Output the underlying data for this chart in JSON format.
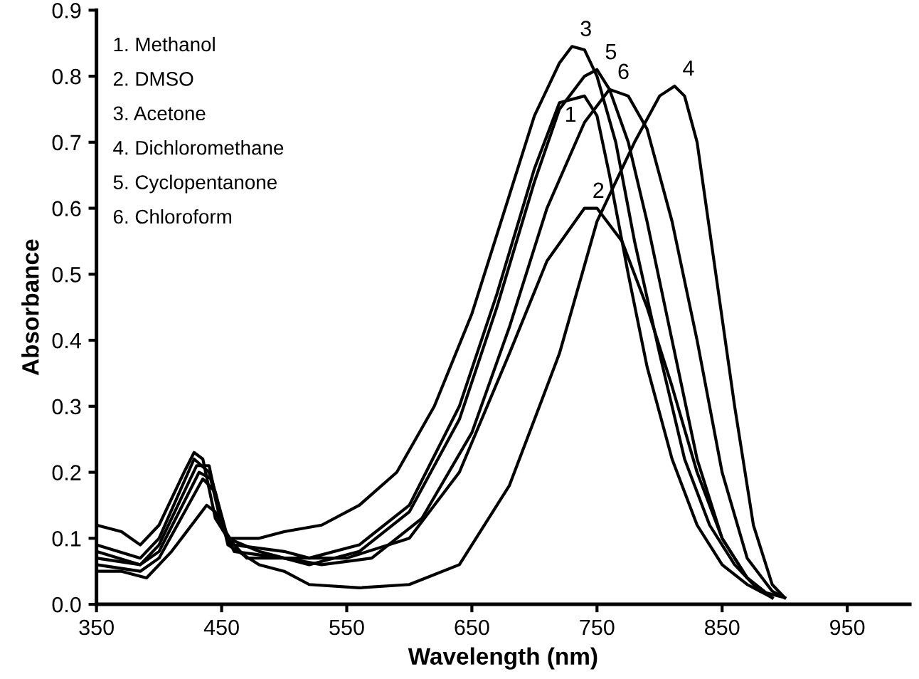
{
  "chart_data": {
    "type": "line",
    "xlabel": "Wavelength (nm)",
    "ylabel": "Absorbance",
    "xlim": [
      350,
      1000
    ],
    "ylim": [
      0,
      0.9
    ],
    "xticks": [
      350,
      450,
      550,
      650,
      750,
      850,
      950
    ],
    "yticks": [
      {
        "value": 0,
        "label": "0.0"
      },
      {
        "value": 0.1,
        "label": "0.1"
      },
      {
        "value": 0.2,
        "label": "0.2"
      },
      {
        "value": 0.3,
        "label": "0.3"
      },
      {
        "value": 0.4,
        "label": "0.4"
      },
      {
        "value": 0.5,
        "label": "0.5"
      },
      {
        "value": 0.6,
        "label": "0.6"
      },
      {
        "value": 0.7,
        "label": "0.7"
      },
      {
        "value": 0.8,
        "label": "0.8"
      },
      {
        "value": 0.9,
        "label": "0.9"
      }
    ],
    "grid": false,
    "legend": false,
    "marker": "none",
    "line_style": "solid",
    "series": [
      {
        "name": "1",
        "color": "#000000",
        "x": [
          350,
          385,
          400,
          428,
          440,
          450,
          460,
          500,
          520,
          560,
          600,
          640,
          670,
          700,
          720,
          740,
          750,
          760,
          775,
          790,
          810,
          830,
          850,
          870,
          890
        ],
        "values": [
          0.09,
          0.07,
          0.1,
          0.22,
          0.2,
          0.12,
          0.09,
          0.08,
          0.07,
          0.09,
          0.15,
          0.3,
          0.47,
          0.66,
          0.76,
          0.77,
          0.74,
          0.65,
          0.5,
          0.36,
          0.22,
          0.12,
          0.06,
          0.03,
          0.01
        ]
      },
      {
        "name": "2",
        "color": "#000000",
        "x": [
          350,
          370,
          390,
          410,
          438,
          445,
          455,
          480,
          500,
          550,
          600,
          640,
          680,
          710,
          740,
          750,
          770,
          790,
          810,
          830,
          850,
          870,
          890
        ],
        "values": [
          0.05,
          0.05,
          0.04,
          0.08,
          0.15,
          0.14,
          0.1,
          0.08,
          0.07,
          0.07,
          0.1,
          0.2,
          0.38,
          0.52,
          0.6,
          0.6,
          0.55,
          0.45,
          0.33,
          0.2,
          0.1,
          0.04,
          0.01
        ]
      },
      {
        "name": "3",
        "color": "#000000",
        "x": [
          350,
          370,
          385,
          400,
          420,
          428,
          435,
          445,
          455,
          480,
          500,
          530,
          560,
          590,
          620,
          650,
          680,
          700,
          720,
          730,
          740,
          750,
          765,
          780,
          800,
          820,
          840,
          860,
          880,
          900
        ],
        "values": [
          0.12,
          0.11,
          0.09,
          0.12,
          0.2,
          0.23,
          0.22,
          0.13,
          0.1,
          0.1,
          0.11,
          0.12,
          0.15,
          0.2,
          0.3,
          0.44,
          0.62,
          0.74,
          0.82,
          0.845,
          0.84,
          0.8,
          0.7,
          0.55,
          0.38,
          0.22,
          0.12,
          0.06,
          0.02,
          0.01
        ]
      },
      {
        "name": "4",
        "color": "#000000",
        "x": [
          350,
          385,
          400,
          435,
          445,
          455,
          480,
          500,
          520,
          560,
          600,
          640,
          680,
          720,
          750,
          780,
          800,
          812,
          820,
          830,
          845,
          860,
          875,
          890,
          900
        ],
        "values": [
          0.06,
          0.05,
          0.07,
          0.19,
          0.17,
          0.09,
          0.06,
          0.05,
          0.03,
          0.025,
          0.03,
          0.06,
          0.18,
          0.38,
          0.58,
          0.7,
          0.77,
          0.785,
          0.77,
          0.7,
          0.5,
          0.3,
          0.12,
          0.03,
          0.01
        ]
      },
      {
        "name": "5",
        "color": "#000000",
        "x": [
          350,
          385,
          400,
          430,
          440,
          450,
          460,
          500,
          520,
          560,
          600,
          640,
          670,
          700,
          720,
          740,
          750,
          760,
          775,
          790,
          810,
          830,
          850,
          870,
          890
        ],
        "values": [
          0.08,
          0.06,
          0.09,
          0.21,
          0.21,
          0.12,
          0.08,
          0.07,
          0.06,
          0.08,
          0.14,
          0.28,
          0.45,
          0.64,
          0.75,
          0.8,
          0.81,
          0.78,
          0.7,
          0.58,
          0.4,
          0.22,
          0.1,
          0.04,
          0.01
        ]
      },
      {
        "name": "6",
        "color": "#000000",
        "x": [
          350,
          385,
          400,
          432,
          442,
          455,
          470,
          500,
          530,
          570,
          610,
          650,
          680,
          710,
          740,
          760,
          775,
          790,
          810,
          830,
          850,
          870,
          890,
          900
        ],
        "values": [
          0.07,
          0.06,
          0.08,
          0.2,
          0.19,
          0.1,
          0.07,
          0.07,
          0.06,
          0.07,
          0.13,
          0.26,
          0.42,
          0.6,
          0.73,
          0.78,
          0.77,
          0.72,
          0.58,
          0.4,
          0.2,
          0.07,
          0.02,
          0.01
        ]
      }
    ],
    "annotations": [
      "1. Methanol",
      "2. DMSO",
      "3. Acetone",
      "4. Dichloromethane",
      "5. Cyclopentanone",
      "6. Chloroform"
    ]
  }
}
